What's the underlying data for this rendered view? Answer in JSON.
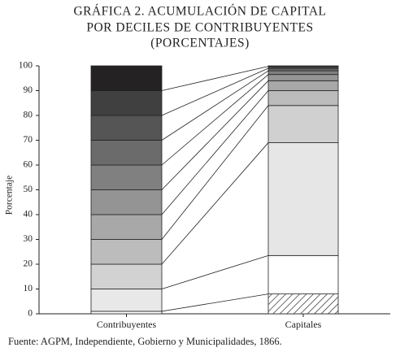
{
  "chart_data": {
    "type": "stacked-bar",
    "title": [
      "GRÁFICA 2. ACUMULACIÓN DE CAPITAL",
      "POR DECILES DE CONTRIBUYENTES",
      "(PORCENTAJES)"
    ],
    "y_label": "Porcentaje",
    "source": "Fuente: AGPM, Independiente, Gobierno y Municipalidades, 1866.",
    "categories": [
      "Contribuyentes",
      "Capitales"
    ],
    "ylim": [
      0,
      100
    ],
    "yticks": [
      0,
      10,
      20,
      30,
      40,
      50,
      60,
      70,
      80,
      90,
      100
    ],
    "connectors": true,
    "series": [
      {
        "colors": [
          "#ffffff",
          "hatch"
        ],
        "values": [
          1,
          8
        ]
      },
      {
        "colors": [
          "#e8e8e8",
          "#ffffff"
        ],
        "values": [
          9,
          15.5
        ]
      },
      {
        "colors": [
          "#d2d2d2",
          "#e6e6e6"
        ],
        "values": [
          10,
          45.5
        ]
      },
      {
        "colors": [
          "#bcbcbc",
          "#d0d0d0"
        ],
        "values": [
          10,
          15
        ]
      },
      {
        "colors": [
          "#a8a8a8",
          "#bbbbbb"
        ],
        "values": [
          10,
          6
        ]
      },
      {
        "colors": [
          "#949494",
          "#a8a8a8"
        ],
        "values": [
          10,
          4
        ]
      },
      {
        "colors": [
          "#808080",
          "#959595"
        ],
        "values": [
          10,
          2.5
        ]
      },
      {
        "colors": [
          "#6b6b6b",
          "#808080"
        ],
        "values": [
          10,
          1.5
        ]
      },
      {
        "colors": [
          "#555555",
          "#666666"
        ],
        "values": [
          10,
          1
        ]
      },
      {
        "colors": [
          "#404040",
          "#444444"
        ],
        "values": [
          10,
          0.8
        ]
      },
      {
        "colors": [
          "#242222",
          "#222222"
        ],
        "values": [
          10,
          0.2
        ]
      }
    ]
  }
}
